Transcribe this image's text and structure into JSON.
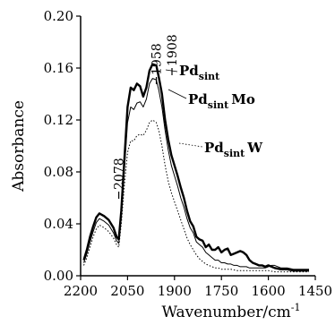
{
  "chart_data": {
    "type": "line",
    "xlabel": "Wavenumber/cm",
    "xlabel_sup": "-1",
    "ylabel": "Absorbance",
    "xlim": [
      2200,
      1450
    ],
    "ylim": [
      0.0,
      0.2
    ],
    "x_ticks": [
      2200,
      2050,
      1900,
      1750,
      1600,
      1450
    ],
    "y_ticks": [
      "0.00",
      "0.04",
      "0.08",
      "0.12",
      "0.16",
      "0.20"
    ],
    "grid": false,
    "legend": "inline labels next to curves",
    "annotations": [
      {
        "label": "2078",
        "x": 2078
      },
      {
        "label": "1958",
        "x": 1958
      },
      {
        "label": "1908",
        "x": 1908
      }
    ],
    "series": [
      {
        "name": "Pd sint",
        "label_main": "Pd",
        "label_sub": "sint",
        "label_suffix": "",
        "style": "thick-solid",
        "points": [
          [
            2190,
            0.012
          ],
          [
            2180,
            0.02
          ],
          [
            2170,
            0.03
          ],
          [
            2160,
            0.038
          ],
          [
            2150,
            0.045
          ],
          [
            2140,
            0.048
          ],
          [
            2125,
            0.046
          ],
          [
            2110,
            0.043
          ],
          [
            2095,
            0.037
          ],
          [
            2085,
            0.03
          ],
          [
            2078,
            0.028
          ],
          [
            2070,
            0.05
          ],
          [
            2060,
            0.09
          ],
          [
            2050,
            0.13
          ],
          [
            2040,
            0.145
          ],
          [
            2030,
            0.143
          ],
          [
            2020,
            0.148
          ],
          [
            2010,
            0.146
          ],
          [
            2000,
            0.138
          ],
          [
            1990,
            0.145
          ],
          [
            1980,
            0.158
          ],
          [
            1970,
            0.163
          ],
          [
            1958,
            0.162
          ],
          [
            1950,
            0.153
          ],
          [
            1940,
            0.14
          ],
          [
            1930,
            0.12
          ],
          [
            1920,
            0.105
          ],
          [
            1910,
            0.093
          ],
          [
            1900,
            0.085
          ],
          [
            1890,
            0.077
          ],
          [
            1880,
            0.068
          ],
          [
            1870,
            0.06
          ],
          [
            1860,
            0.05
          ],
          [
            1850,
            0.042
          ],
          [
            1840,
            0.038
          ],
          [
            1830,
            0.03
          ],
          [
            1820,
            0.028
          ],
          [
            1810,
            0.027
          ],
          [
            1800,
            0.022
          ],
          [
            1790,
            0.024
          ],
          [
            1780,
            0.02
          ],
          [
            1770,
            0.02
          ],
          [
            1760,
            0.022
          ],
          [
            1750,
            0.018
          ],
          [
            1740,
            0.02
          ],
          [
            1730,
            0.021
          ],
          [
            1720,
            0.016
          ],
          [
            1710,
            0.017
          ],
          [
            1700,
            0.018
          ],
          [
            1690,
            0.019
          ],
          [
            1680,
            0.018
          ],
          [
            1670,
            0.016
          ],
          [
            1660,
            0.012
          ],
          [
            1650,
            0.01
          ],
          [
            1640,
            0.009
          ],
          [
            1630,
            0.008
          ],
          [
            1620,
            0.008
          ],
          [
            1610,
            0.007
          ],
          [
            1600,
            0.008
          ],
          [
            1580,
            0.006
          ],
          [
            1560,
            0.005
          ],
          [
            1540,
            0.005
          ],
          [
            1520,
            0.004
          ],
          [
            1500,
            0.004
          ],
          [
            1470,
            0.004
          ]
        ]
      },
      {
        "name": "Pd sint Mo",
        "label_main": "Pd",
        "label_sub": "sint",
        "label_suffix": "Mo",
        "style": "thin-solid",
        "points": [
          [
            2190,
            0.01
          ],
          [
            2180,
            0.017
          ],
          [
            2170,
            0.026
          ],
          [
            2160,
            0.034
          ],
          [
            2150,
            0.041
          ],
          [
            2140,
            0.044
          ],
          [
            2125,
            0.042
          ],
          [
            2110,
            0.039
          ],
          [
            2095,
            0.033
          ],
          [
            2085,
            0.027
          ],
          [
            2078,
            0.025
          ],
          [
            2070,
            0.045
          ],
          [
            2060,
            0.082
          ],
          [
            2050,
            0.118
          ],
          [
            2040,
            0.13
          ],
          [
            2030,
            0.128
          ],
          [
            2020,
            0.133
          ],
          [
            2010,
            0.134
          ],
          [
            2000,
            0.13
          ],
          [
            1990,
            0.136
          ],
          [
            1980,
            0.148
          ],
          [
            1970,
            0.152
          ],
          [
            1958,
            0.151
          ],
          [
            1950,
            0.143
          ],
          [
            1940,
            0.13
          ],
          [
            1930,
            0.112
          ],
          [
            1920,
            0.097
          ],
          [
            1910,
            0.085
          ],
          [
            1900,
            0.077
          ],
          [
            1890,
            0.069
          ],
          [
            1880,
            0.06
          ],
          [
            1870,
            0.053
          ],
          [
            1860,
            0.044
          ],
          [
            1850,
            0.037
          ],
          [
            1840,
            0.033
          ],
          [
            1830,
            0.026
          ],
          [
            1820,
            0.024
          ],
          [
            1810,
            0.022
          ],
          [
            1800,
            0.018
          ],
          [
            1790,
            0.016
          ],
          [
            1780,
            0.014
          ],
          [
            1770,
            0.012
          ],
          [
            1760,
            0.012
          ],
          [
            1750,
            0.01
          ],
          [
            1740,
            0.01
          ],
          [
            1730,
            0.009
          ],
          [
            1720,
            0.009
          ],
          [
            1710,
            0.008
          ],
          [
            1700,
            0.008
          ],
          [
            1690,
            0.007
          ],
          [
            1680,
            0.007
          ],
          [
            1670,
            0.007
          ],
          [
            1660,
            0.006
          ],
          [
            1650,
            0.006
          ],
          [
            1640,
            0.006
          ],
          [
            1630,
            0.006
          ],
          [
            1620,
            0.006
          ],
          [
            1610,
            0.006
          ],
          [
            1600,
            0.007
          ],
          [
            1590,
            0.008
          ],
          [
            1580,
            0.008
          ],
          [
            1570,
            0.007
          ],
          [
            1560,
            0.006
          ],
          [
            1540,
            0.006
          ],
          [
            1520,
            0.005
          ],
          [
            1500,
            0.005
          ],
          [
            1470,
            0.005
          ]
        ]
      },
      {
        "name": "Pd sint W",
        "label_main": "Pd",
        "label_sub": "sint",
        "label_suffix": "W",
        "style": "dotted",
        "points": [
          [
            2190,
            0.008
          ],
          [
            2180,
            0.014
          ],
          [
            2170,
            0.022
          ],
          [
            2160,
            0.03
          ],
          [
            2150,
            0.036
          ],
          [
            2140,
            0.039
          ],
          [
            2125,
            0.037
          ],
          [
            2110,
            0.034
          ],
          [
            2095,
            0.029
          ],
          [
            2085,
            0.024
          ],
          [
            2078,
            0.022
          ],
          [
            2070,
            0.04
          ],
          [
            2060,
            0.07
          ],
          [
            2050,
            0.095
          ],
          [
            2040,
            0.104
          ],
          [
            2030,
            0.104
          ],
          [
            2020,
            0.108
          ],
          [
            2010,
            0.109
          ],
          [
            2000,
            0.108
          ],
          [
            1990,
            0.112
          ],
          [
            1980,
            0.118
          ],
          [
            1970,
            0.12
          ],
          [
            1958,
            0.118
          ],
          [
            1950,
            0.112
          ],
          [
            1940,
            0.1
          ],
          [
            1930,
            0.085
          ],
          [
            1920,
            0.073
          ],
          [
            1910,
            0.064
          ],
          [
            1900,
            0.057
          ],
          [
            1890,
            0.05
          ],
          [
            1880,
            0.043
          ],
          [
            1870,
            0.036
          ],
          [
            1860,
            0.029
          ],
          [
            1850,
            0.024
          ],
          [
            1840,
            0.02
          ],
          [
            1830,
            0.016
          ],
          [
            1820,
            0.013
          ],
          [
            1810,
            0.011
          ],
          [
            1800,
            0.009
          ],
          [
            1790,
            0.008
          ],
          [
            1780,
            0.007
          ],
          [
            1770,
            0.006
          ],
          [
            1760,
            0.006
          ],
          [
            1750,
            0.005
          ],
          [
            1740,
            0.005
          ],
          [
            1720,
            0.005
          ],
          [
            1700,
            0.004
          ],
          [
            1680,
            0.004
          ],
          [
            1660,
            0.004
          ],
          [
            1640,
            0.004
          ],
          [
            1620,
            0.004
          ],
          [
            1600,
            0.004
          ],
          [
            1580,
            0.003
          ],
          [
            1560,
            0.003
          ],
          [
            1540,
            0.003
          ],
          [
            1520,
            0.003
          ],
          [
            1500,
            0.003
          ],
          [
            1470,
            0.003
          ]
        ]
      }
    ]
  }
}
